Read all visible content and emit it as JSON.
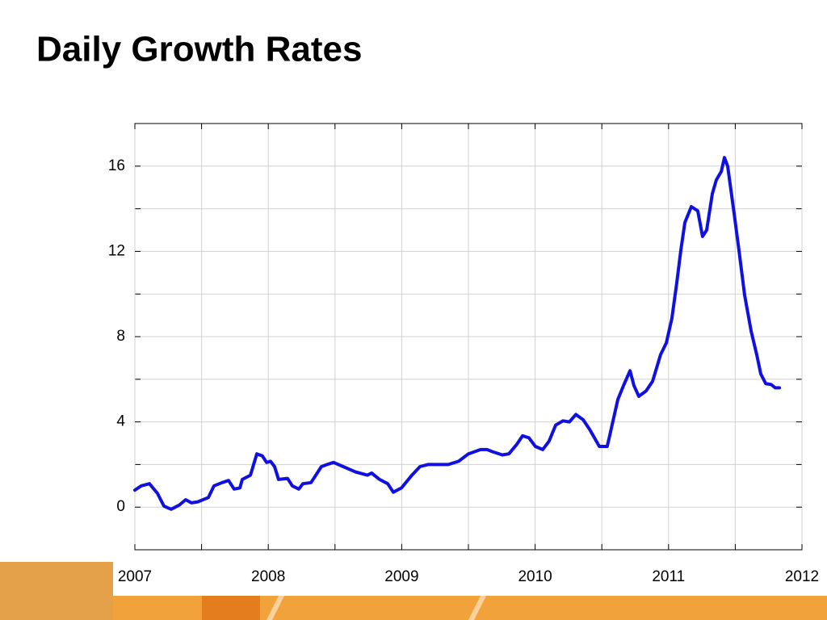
{
  "chart_data": {
    "type": "line",
    "title": "Daily Growth Rates",
    "x": [
      2007.0,
      2007.048,
      2007.109,
      2007.169,
      2007.218,
      2007.272,
      2007.333,
      2007.381,
      2007.424,
      2007.472,
      2007.551,
      2007.593,
      2007.654,
      2007.702,
      2007.744,
      2007.787,
      2007.805,
      2007.866,
      2007.914,
      2007.956,
      2007.987,
      2008.017,
      2008.047,
      2008.077,
      2008.144,
      2008.18,
      2008.229,
      2008.259,
      2008.32,
      2008.398,
      2008.441,
      2008.489,
      2008.562,
      2008.653,
      2008.743,
      2008.774,
      2008.834,
      2008.895,
      2008.937,
      2008.998,
      2009.076,
      2009.137,
      2009.197,
      2009.288,
      2009.349,
      2009.427,
      2009.5,
      2009.591,
      2009.639,
      2009.682,
      2009.754,
      2009.803,
      2009.863,
      2009.906,
      2009.954,
      2010.002,
      2010.057,
      2010.105,
      2010.154,
      2010.208,
      2010.257,
      2010.305,
      2010.36,
      2010.408,
      2010.481,
      2010.54,
      2010.559,
      2010.62,
      2010.662,
      2010.711,
      2010.741,
      2010.777,
      2010.832,
      2010.88,
      2010.94,
      2010.983,
      2011.025,
      2011.061,
      2011.092,
      2011.122,
      2011.171,
      2011.219,
      2011.255,
      2011.286,
      2011.328,
      2011.358,
      2011.395,
      2011.419,
      2011.443,
      2011.492,
      2011.528,
      2011.57,
      2011.619,
      2011.661,
      2011.691,
      2011.728,
      2011.77,
      2011.8,
      2011.831
    ],
    "series": [
      {
        "color": "#1010e0",
        "values": [
          0.8,
          1.0,
          1.1,
          0.65,
          0.05,
          -0.1,
          0.1,
          0.35,
          0.2,
          0.25,
          0.45,
          1.0,
          1.15,
          1.25,
          0.85,
          0.9,
          1.3,
          1.5,
          2.5,
          2.4,
          2.1,
          2.15,
          1.9,
          1.3,
          1.35,
          1.0,
          0.85,
          1.1,
          1.15,
          1.9,
          2.0,
          2.1,
          1.9,
          1.65,
          1.5,
          1.6,
          1.3,
          1.1,
          0.7,
          0.9,
          1.5,
          1.9,
          2.0,
          2.0,
          2.0,
          2.15,
          2.5,
          2.7,
          2.7,
          2.6,
          2.45,
          2.5,
          2.95,
          3.35,
          3.25,
          2.85,
          2.7,
          3.1,
          3.85,
          4.05,
          4.0,
          4.35,
          4.1,
          3.65,
          2.85,
          2.85,
          3.35,
          5.05,
          5.7,
          6.4,
          5.7,
          5.2,
          5.45,
          5.9,
          7.15,
          7.7,
          8.85,
          10.5,
          12.05,
          13.35,
          14.1,
          13.9,
          12.7,
          13.0,
          14.7,
          15.35,
          15.75,
          16.4,
          16.0,
          13.75,
          12.05,
          9.95,
          8.25,
          7.15,
          6.25,
          5.8,
          5.75,
          5.6,
          5.6
        ]
      }
    ],
    "xlim": [
      2007,
      2012
    ],
    "xticks": [
      2007,
      2008,
      2009,
      2010,
      2011,
      2012
    ],
    "minor_xticks": [
      2007.5,
      2008.5,
      2009.5,
      2010.5,
      2011.5
    ],
    "ylim": [
      -2,
      18
    ],
    "yticks": [
      0,
      4,
      8,
      12,
      16
    ],
    "minor_yticks": [
      2,
      6,
      10,
      14
    ],
    "grid": true
  }
}
